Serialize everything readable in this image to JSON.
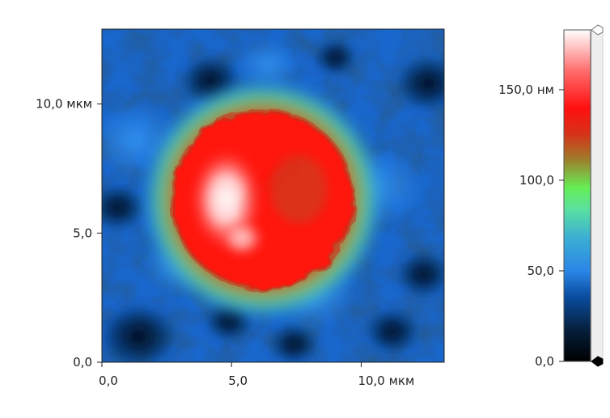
{
  "chart_data": {
    "type": "heatmap",
    "description_units": {
      "x_unit": "мкм",
      "y_unit": "мкм",
      "z_unit": "нм"
    },
    "xlim": [
      0,
      13.2
    ],
    "ylim": [
      0,
      12.9
    ],
    "x_ticks": [
      {
        "value": 0,
        "label": "0,0"
      },
      {
        "value": 5,
        "label": "5,0"
      },
      {
        "value": 10,
        "label": "10,0 мкм"
      }
    ],
    "y_ticks": [
      {
        "value": 0,
        "label": "0,0"
      },
      {
        "value": 5,
        "label": "5,0"
      },
      {
        "value": 10,
        "label": "10,0 мкм"
      }
    ],
    "colorbar": {
      "range": [
        0,
        183
      ],
      "ticks": [
        {
          "value": 0,
          "label": "0,0"
        },
        {
          "value": 50,
          "label": "50,0"
        },
        {
          "value": 100,
          "label": "100,0"
        },
        {
          "value": 150,
          "label": "150,0 нм"
        }
      ],
      "stops": [
        {
          "value": 0,
          "color": "#000000"
        },
        {
          "value": 18,
          "color": "#06213f"
        },
        {
          "value": 36,
          "color": "#0a4ea1"
        },
        {
          "value": 50,
          "color": "#2b86e6"
        },
        {
          "value": 68,
          "color": "#3aaed4"
        },
        {
          "value": 84,
          "color": "#5ae0a0"
        },
        {
          "value": 96,
          "color": "#66ee55"
        },
        {
          "value": 112,
          "color": "#a07a2a"
        },
        {
          "value": 126,
          "color": "#d83018"
        },
        {
          "value": 140,
          "color": "#ff1010"
        },
        {
          "value": 160,
          "color": "#ff6a6a"
        },
        {
          "value": 183,
          "color": "#ffffff"
        }
      ]
    },
    "feature": {
      "shape": "rounded bump",
      "center": [
        6.2,
        6.3
      ],
      "radius": 3.3,
      "peak_height": 175,
      "brightest_point": [
        4.8,
        6.3
      ],
      "background_height": 45
    }
  }
}
